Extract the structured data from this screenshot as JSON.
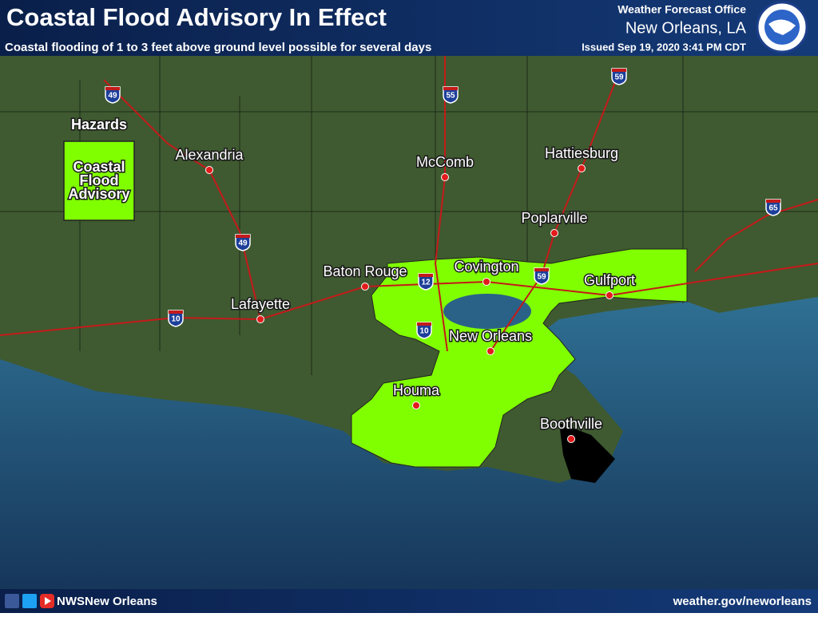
{
  "header": {
    "title": "Coastal Flood Advisory In Effect",
    "subtitle": "Coastal flooding of 1 to 3 feet above ground level possible for several days",
    "office": "Weather Forecast Office",
    "location": "New Orleans, LA",
    "issued": "Issued Sep 19, 2020 3:41 PM CDT"
  },
  "legend": {
    "title": "Hazards",
    "items": [
      "Coastal",
      "Flood",
      "Advisory"
    ]
  },
  "cities": [
    "Alexandria",
    "McComb",
    "Hattiesburg",
    "Poplarville",
    "Baton Rouge",
    "Covington",
    "Gulfport",
    "Lafayette",
    "New Orleans",
    "Houma",
    "Boothville"
  ],
  "interstates": [
    "49",
    "55",
    "59",
    "65",
    "49",
    "10",
    "10",
    "12",
    "59"
  ],
  "footer": {
    "social": "NWSNew Orleans",
    "website": "weather.gov/neworleans"
  }
}
